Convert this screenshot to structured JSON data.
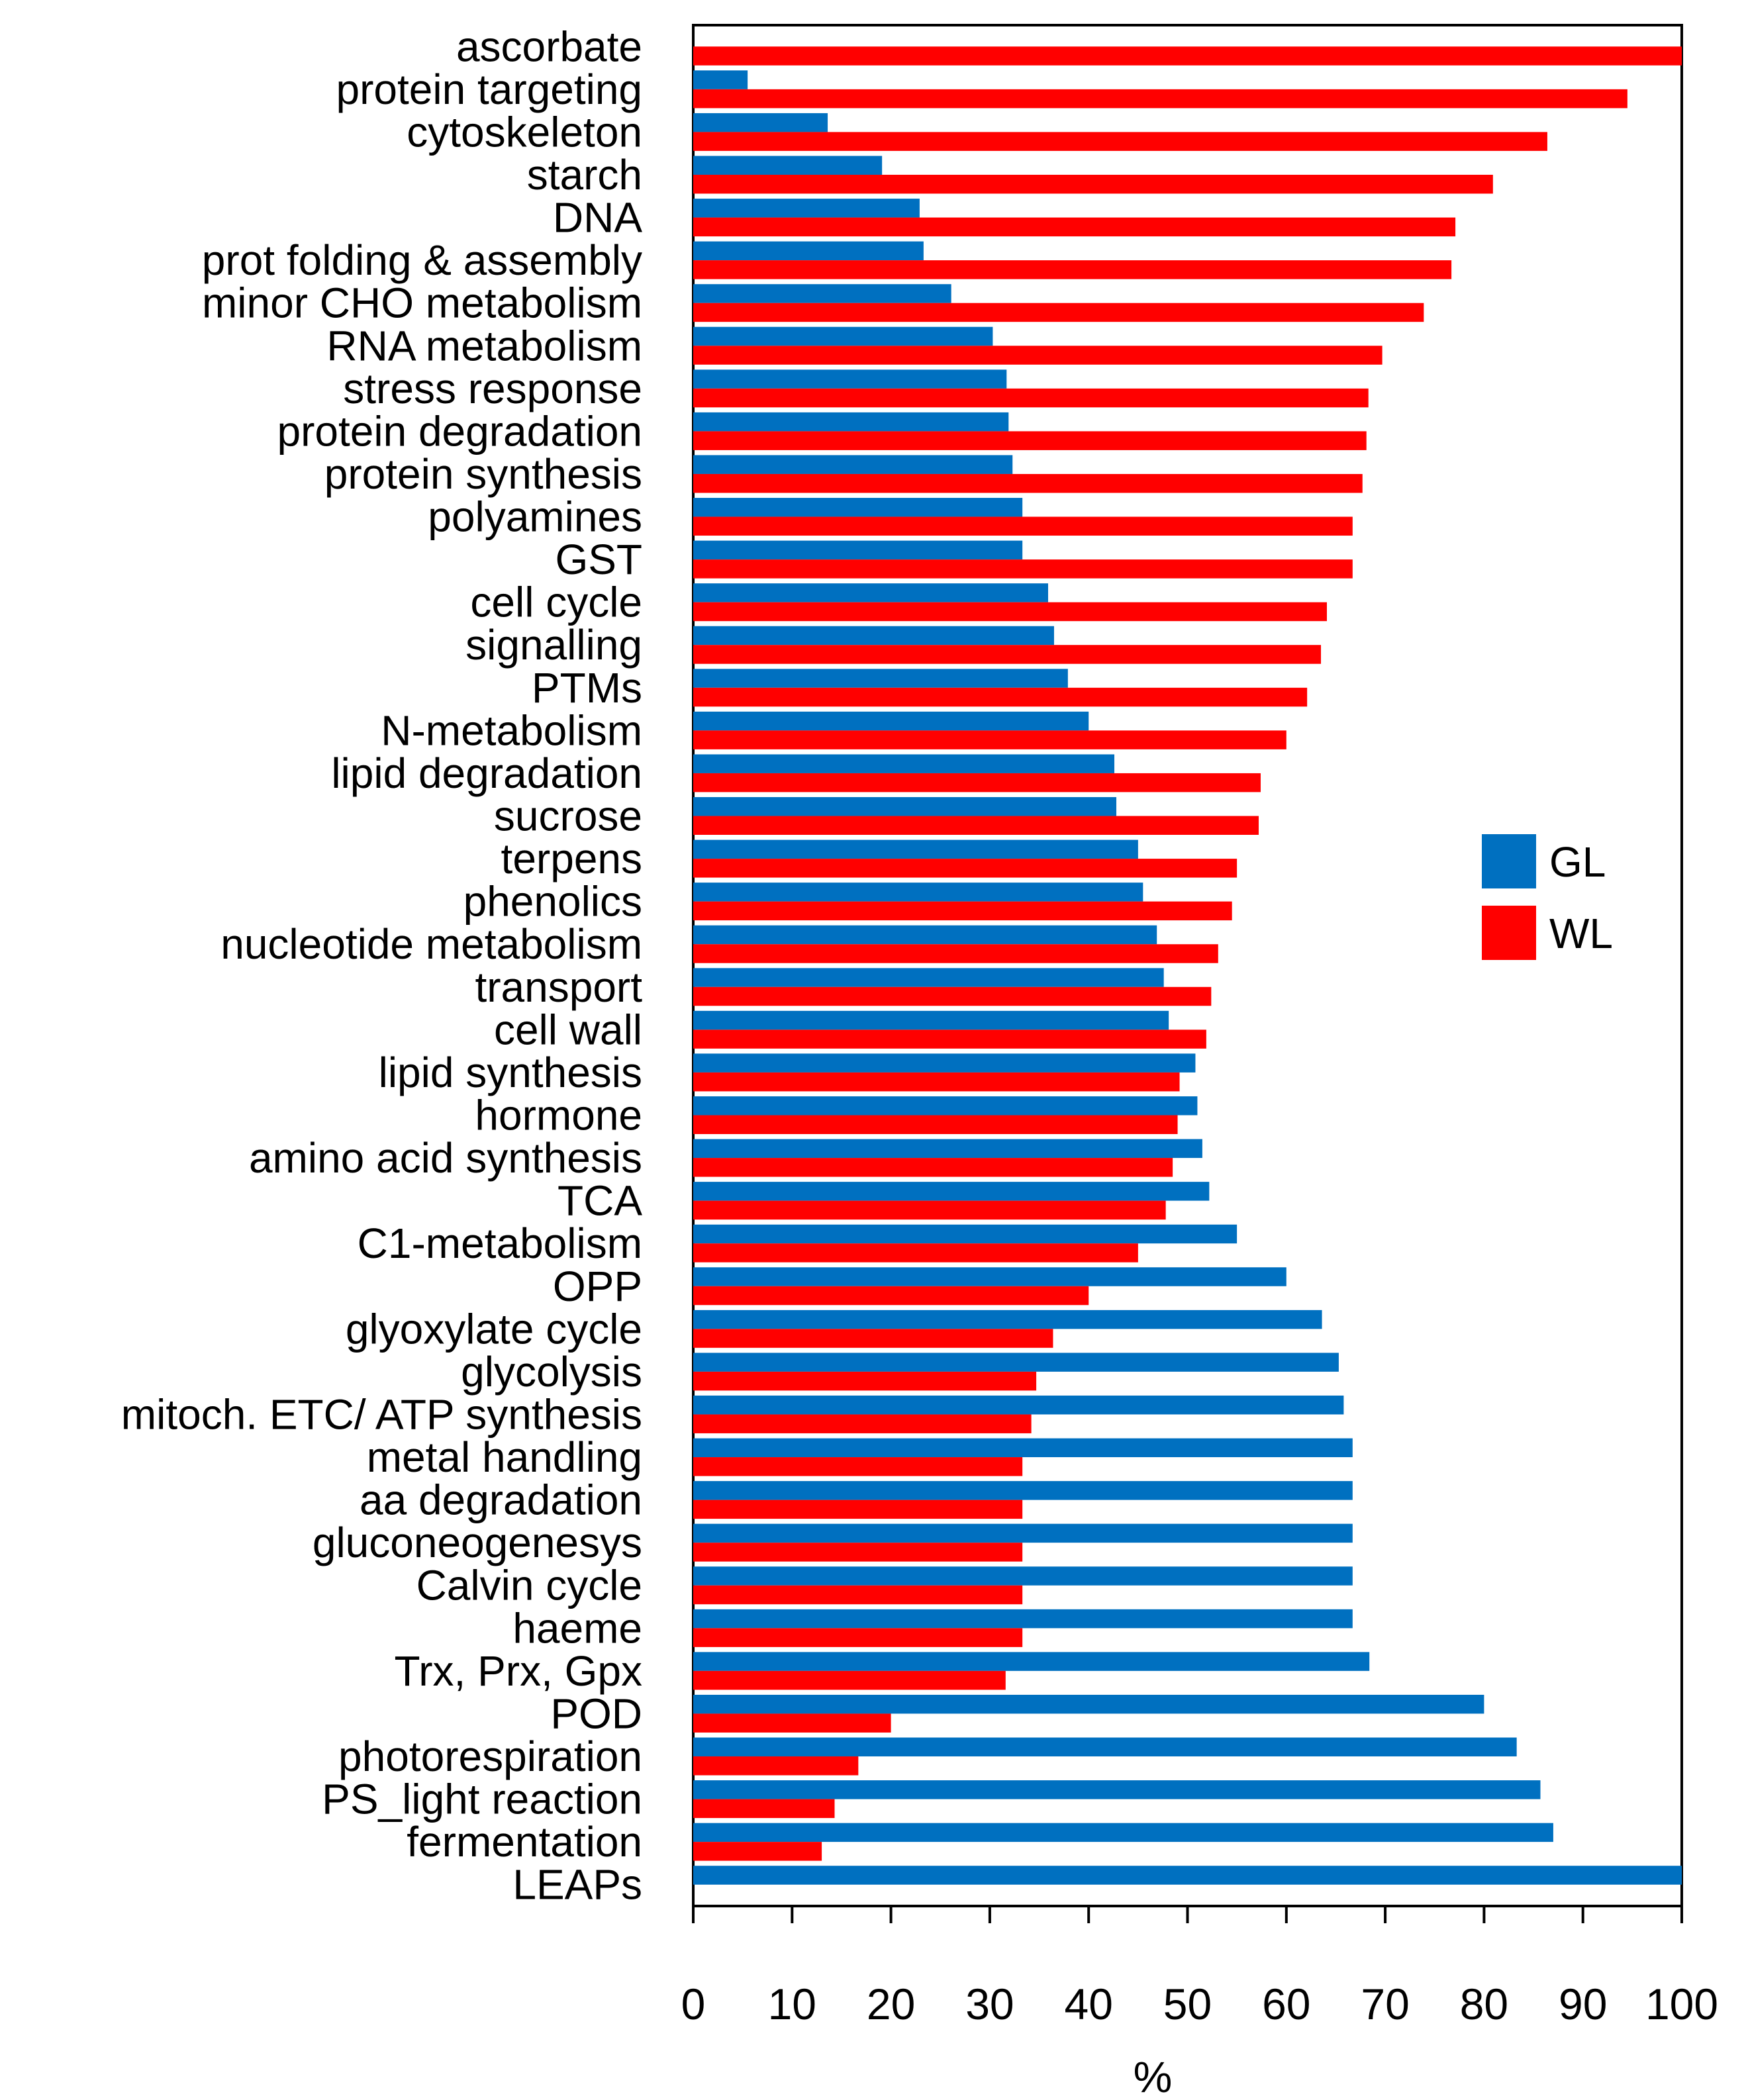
{
  "chart_data": {
    "type": "bar",
    "orientation": "horizontal",
    "title": "",
    "xlabel": "%",
    "ylabel": "",
    "xlim": [
      0,
      100
    ],
    "xticks": [
      "0",
      "10",
      "20",
      "30",
      "40",
      "50",
      "60",
      "70",
      "80",
      "90",
      "100"
    ],
    "legend_position": "right",
    "categories": [
      "ascorbate",
      "protein targeting",
      "cytoskeleton",
      "starch",
      "DNA",
      "prot folding & assembly",
      "minor CHO metabolism",
      "RNA metabolism",
      "stress response",
      "protein degradation",
      "protein synthesis",
      "polyamines",
      "GST",
      "cell cycle",
      "signalling",
      "PTMs",
      "N-metabolism",
      "lipid degradation",
      "sucrose",
      "terpens",
      "phenolics",
      "nucleotide metabolism",
      "transport",
      "cell wall",
      "lipid synthesis",
      "hormone",
      "amino acid synthesis",
      "TCA",
      "C1-metabolism",
      "OPP",
      "glyoxylate cycle",
      "glycolysis",
      "mitoch. ETC/ ATP synthesis",
      "metal handling",
      "aa degradation",
      "gluconeogenesys",
      "Calvin cycle",
      "haeme",
      "Trx, Prx, Gpx",
      "POD",
      "photorespiration",
      "PS_light reaction",
      "fermentation",
      "LEAPs"
    ],
    "series": [
      {
        "name": "GL",
        "color": "#0070c0",
        "values": [
          0,
          5.5,
          13.6,
          19.1,
          22.9,
          23.3,
          26.1,
          30.3,
          31.7,
          31.9,
          32.3,
          33.3,
          33.3,
          35.9,
          36.5,
          37.9,
          40.0,
          42.6,
          42.8,
          45.0,
          45.5,
          46.9,
          47.6,
          48.1,
          50.8,
          51.0,
          51.5,
          52.2,
          55.0,
          60.0,
          63.6,
          65.3,
          65.8,
          66.7,
          66.7,
          66.7,
          66.7,
          66.7,
          68.4,
          80.0,
          83.3,
          85.7,
          87.0,
          100
        ]
      },
      {
        "name": "WL",
        "color": "#ff0000",
        "values": [
          100,
          94.5,
          86.4,
          80.9,
          77.1,
          76.7,
          73.9,
          69.7,
          68.3,
          68.1,
          67.7,
          66.7,
          66.7,
          64.1,
          63.5,
          62.1,
          60.0,
          57.4,
          57.2,
          55.0,
          54.5,
          53.1,
          52.4,
          51.9,
          49.2,
          49.0,
          48.5,
          47.8,
          45.0,
          40.0,
          36.4,
          34.7,
          34.2,
          33.3,
          33.3,
          33.3,
          33.3,
          33.3,
          31.6,
          20.0,
          16.7,
          14.3,
          13.0,
          0
        ]
      }
    ]
  }
}
